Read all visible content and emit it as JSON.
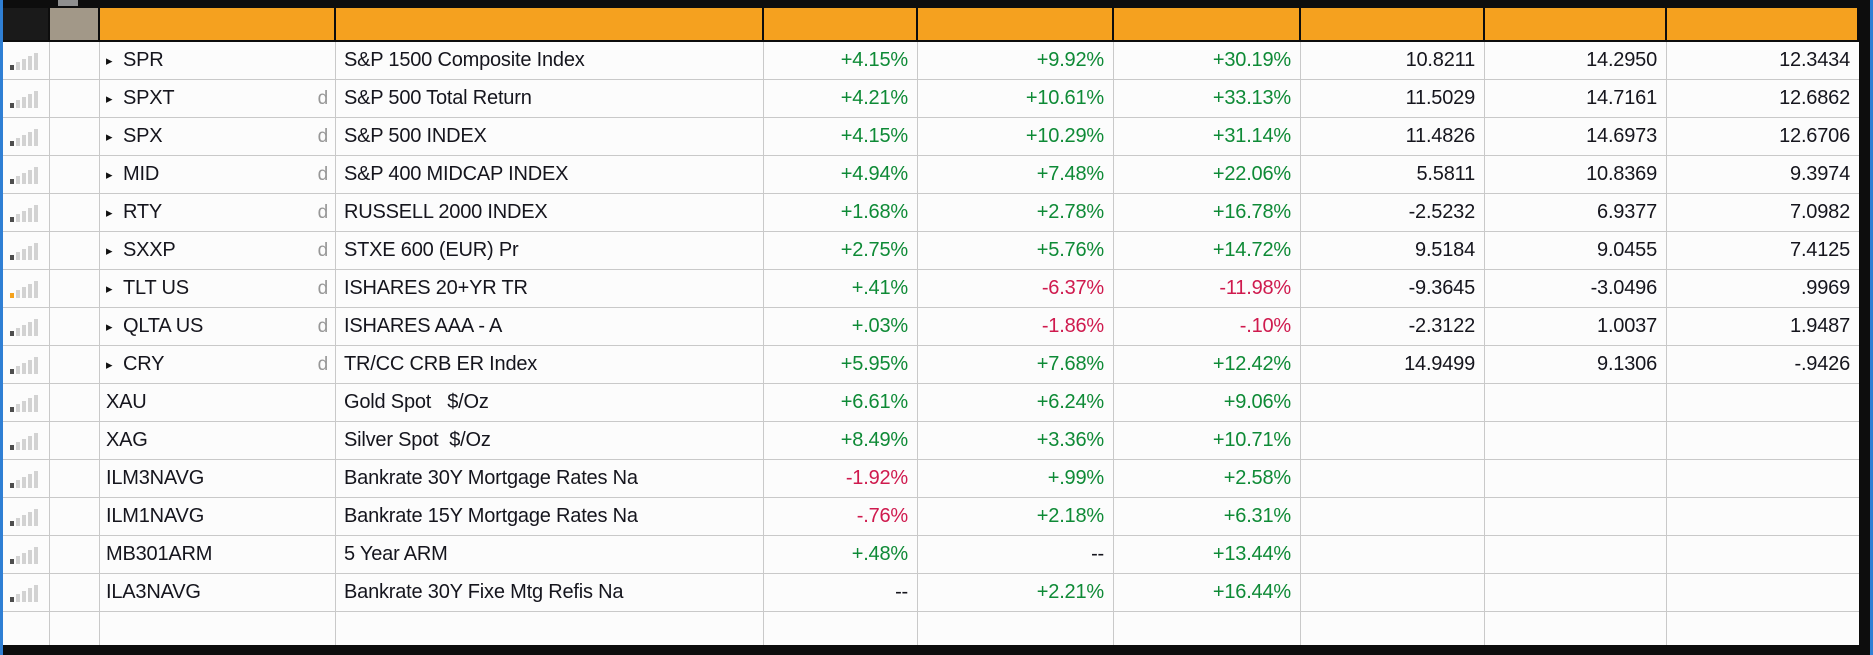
{
  "app": {
    "description": "financial monitor grid with index returns",
    "header_cells": [
      {
        "label": "",
        "style": "black"
      },
      {
        "label": "",
        "style": "taupe"
      },
      {
        "label": "",
        "style": "orange"
      },
      {
        "label": "",
        "style": "orange"
      },
      {
        "label": "",
        "style": "orange"
      },
      {
        "label": "",
        "style": "orange"
      },
      {
        "label": "",
        "style": "orange"
      },
      {
        "label": "",
        "style": "orange"
      },
      {
        "label": "",
        "style": "orange"
      },
      {
        "label": "",
        "style": "orange"
      }
    ]
  },
  "colors": {
    "positive": "#0e8a36",
    "negative": "#cf1a4e",
    "neutral_text": "#15151d",
    "header_orange": "#f5a11f",
    "header_taupe": "#a29888",
    "header_black": "#1a1a1a",
    "accent_blue": "#2f7fd4",
    "icon_bar_default": "#4d4d4d",
    "icon_bar_alert": "#f5a21d"
  },
  "rows": [
    {
      "icon": "signal-bars",
      "icon_state": "default",
      "expandable": true,
      "ticker": "SPR",
      "flag": "",
      "description": "S&P 1500 Composite Index",
      "returns": [
        "+4.15%",
        "+9.92%",
        "+30.19%"
      ],
      "stats": [
        "10.8211",
        "14.2950",
        "12.3434"
      ]
    },
    {
      "icon": "signal-bars",
      "icon_state": "default",
      "expandable": true,
      "ticker": "SPXT",
      "flag": "d",
      "description": "S&P 500 Total Return",
      "returns": [
        "+4.21%",
        "+10.61%",
        "+33.13%"
      ],
      "stats": [
        "11.5029",
        "14.7161",
        "12.6862"
      ]
    },
    {
      "icon": "signal-bars",
      "icon_state": "default",
      "expandable": true,
      "ticker": "SPX",
      "flag": "d",
      "description": "S&P 500 INDEX",
      "returns": [
        "+4.15%",
        "+10.29%",
        "+31.14%"
      ],
      "stats": [
        "11.4826",
        "14.6973",
        "12.6706"
      ]
    },
    {
      "icon": "signal-bars",
      "icon_state": "default",
      "expandable": true,
      "ticker": "MID",
      "flag": "d",
      "description": "S&P 400 MIDCAP INDEX",
      "returns": [
        "+4.94%",
        "+7.48%",
        "+22.06%"
      ],
      "stats": [
        "5.5811",
        "10.8369",
        "9.3974"
      ]
    },
    {
      "icon": "signal-bars",
      "icon_state": "default",
      "expandable": true,
      "ticker": "RTY",
      "flag": "d",
      "description": "RUSSELL 2000 INDEX",
      "returns": [
        "+1.68%",
        "+2.78%",
        "+16.78%"
      ],
      "stats": [
        "-2.5232",
        "6.9377",
        "7.0982"
      ]
    },
    {
      "icon": "signal-bars",
      "icon_state": "default",
      "expandable": true,
      "ticker": "SXXP",
      "flag": "d",
      "description": "STXE 600 (EUR) Pr",
      "returns": [
        "+2.75%",
        "+5.76%",
        "+14.72%"
      ],
      "stats": [
        "9.5184",
        "9.0455",
        "7.4125"
      ]
    },
    {
      "icon": "signal-bars",
      "icon_state": "alert",
      "expandable": true,
      "ticker": "TLT US",
      "flag": "d",
      "description": "ISHARES 20+YR TR",
      "returns": [
        "+.41%",
        "-6.37%",
        "-11.98%"
      ],
      "stats": [
        "-9.3645",
        "-3.0496",
        ".9969"
      ]
    },
    {
      "icon": "signal-bars",
      "icon_state": "default",
      "expandable": true,
      "ticker": "QLTA US",
      "flag": "d",
      "description": "ISHARES AAA - A",
      "returns": [
        "+.03%",
        "-1.86%",
        "-.10%"
      ],
      "stats": [
        "-2.3122",
        "1.0037",
        "1.9487"
      ]
    },
    {
      "icon": "signal-bars",
      "icon_state": "default",
      "expandable": true,
      "ticker": "CRY",
      "flag": "d",
      "description": "TR/CC CRB ER Index",
      "returns": [
        "+5.95%",
        "+7.68%",
        "+12.42%"
      ],
      "stats": [
        "14.9499",
        "9.1306",
        "-.9426"
      ]
    },
    {
      "icon": "signal-bars",
      "icon_state": "default",
      "expandable": false,
      "ticker": "XAU",
      "flag": "",
      "description": "Gold Spot   $/Oz",
      "returns": [
        "+6.61%",
        "+6.24%",
        "+9.06%"
      ],
      "stats": [
        "",
        "",
        ""
      ]
    },
    {
      "icon": "signal-bars",
      "icon_state": "default",
      "expandable": false,
      "ticker": "XAG",
      "flag": "",
      "description": "Silver Spot  $/Oz",
      "returns": [
        "+8.49%",
        "+3.36%",
        "+10.71%"
      ],
      "stats": [
        "",
        "",
        ""
      ]
    },
    {
      "icon": "signal-bars",
      "icon_state": "default",
      "expandable": false,
      "ticker": "ILM3NAVG",
      "flag": "",
      "description": "Bankrate 30Y Mortgage Rates Na",
      "returns": [
        "-1.92%",
        "+.99%",
        "+2.58%"
      ],
      "stats": [
        "",
        "",
        ""
      ]
    },
    {
      "icon": "signal-bars",
      "icon_state": "default",
      "expandable": false,
      "ticker": "ILM1NAVG",
      "flag": "",
      "description": "Bankrate 15Y Mortgage Rates Na",
      "returns": [
        "-.76%",
        "+2.18%",
        "+6.31%"
      ],
      "stats": [
        "",
        "",
        ""
      ]
    },
    {
      "icon": "signal-bars",
      "icon_state": "default",
      "expandable": false,
      "ticker": "MB301ARM",
      "flag": "",
      "description": "5 Year ARM",
      "returns": [
        "+.48%",
        "--",
        "+13.44%"
      ],
      "stats": [
        "",
        "",
        ""
      ]
    },
    {
      "icon": "signal-bars",
      "icon_state": "default",
      "expandable": false,
      "ticker": "ILA3NAVG",
      "flag": "",
      "description": "Bankrate 30Y Fixe Mtg Refis Na",
      "returns": [
        "--",
        "+2.21%",
        "+16.44%"
      ],
      "stats": [
        "",
        "",
        ""
      ]
    },
    {
      "icon": "signal-bars",
      "icon_state": "none",
      "expandable": false,
      "ticker": "",
      "flag": "",
      "description": "",
      "returns": [
        "",
        "",
        ""
      ],
      "stats": [
        "",
        "",
        ""
      ]
    }
  ]
}
